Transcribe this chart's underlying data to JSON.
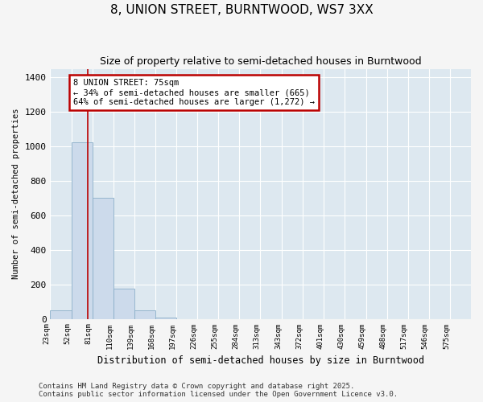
{
  "title": "8, UNION STREET, BURNTWOOD, WS7 3XX",
  "subtitle": "Size of property relative to semi-detached houses in Burntwood",
  "xlabel": "Distribution of semi-detached houses by size in Burntwood",
  "ylabel": "Number of semi-detached properties",
  "bin_edges": [
    23,
    52,
    81,
    110,
    139,
    168,
    197,
    226,
    255,
    284,
    313,
    343,
    372,
    401,
    430,
    459,
    488,
    517,
    546,
    575,
    604
  ],
  "bar_heights": [
    50,
    1025,
    700,
    175,
    50,
    5,
    0,
    0,
    0,
    0,
    0,
    0,
    0,
    0,
    0,
    0,
    0,
    0,
    0,
    0
  ],
  "bar_color": "#ccdaeb",
  "bar_edge_color": "#8aaec8",
  "property_size": 75,
  "property_label": "8 UNION STREET: 75sqm",
  "pct_smaller": 34,
  "pct_larger": 64,
  "count_smaller": 665,
  "count_larger": 1272,
  "red_line_color": "#bb0000",
  "annotation_box_edgecolor": "#bb0000",
  "ylim": [
    0,
    1450
  ],
  "yticks": [
    0,
    200,
    400,
    600,
    800,
    1000,
    1200,
    1400
  ],
  "plot_bg_color": "#dde8f0",
  "fig_bg_color": "#f5f5f5",
  "grid_color": "#ffffff",
  "footer": "Contains HM Land Registry data © Crown copyright and database right 2025.\nContains public sector information licensed under the Open Government Licence v3.0."
}
